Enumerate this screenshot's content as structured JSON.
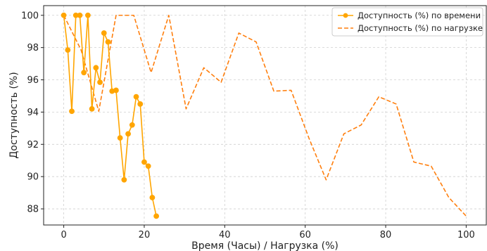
{
  "chart_data": {
    "type": "line",
    "title": "",
    "xlabel": "Время (Часы) / Нагрузка (%)",
    "ylabel": "Доступность (%)",
    "xlim": [
      -5,
      105
    ],
    "ylim": [
      87,
      100.6
    ],
    "x_ticks": [
      0,
      20,
      40,
      60,
      80,
      100
    ],
    "y_ticks": [
      88,
      90,
      92,
      94,
      96,
      98,
      100
    ],
    "grid": true,
    "legend_position": "top-right",
    "series": [
      {
        "name": "Доступность (%) по времени",
        "color": "#FFA500",
        "style": "solid",
        "marker": "circle",
        "x": [
          0,
          1,
          2,
          3,
          4,
          5,
          6,
          7,
          8,
          9,
          10,
          11,
          12,
          13,
          14,
          15,
          16,
          17,
          18,
          19,
          20,
          21,
          22,
          23
        ],
        "y": [
          100,
          97.85,
          94.05,
          100,
          100,
          96.45,
          100,
          94.2,
          96.75,
          95.85,
          98.9,
          98.35,
          95.3,
          95.35,
          92.4,
          89.8,
          92.65,
          93.2,
          94.95,
          94.5,
          90.9,
          90.65,
          88.7,
          87.55
        ]
      },
      {
        "name": "Доступность (%) по нагрузке",
        "color": "#FF7F0E",
        "style": "dashed",
        "marker": "none",
        "x": [
          0,
          4.3,
          8.7,
          13,
          17.4,
          21.7,
          26.1,
          30.4,
          34.8,
          39.1,
          43.5,
          47.8,
          52.2,
          56.5,
          60.9,
          65.2,
          69.6,
          73.9,
          78.3,
          82.6,
          87,
          91.3,
          95.7,
          100
        ],
        "y": [
          100,
          97.85,
          94.05,
          100,
          100,
          96.45,
          100,
          94.2,
          96.75,
          95.85,
          98.9,
          98.35,
          95.3,
          95.35,
          92.4,
          89.8,
          92.65,
          93.2,
          94.95,
          94.5,
          90.9,
          90.65,
          88.7,
          87.55
        ]
      }
    ]
  }
}
